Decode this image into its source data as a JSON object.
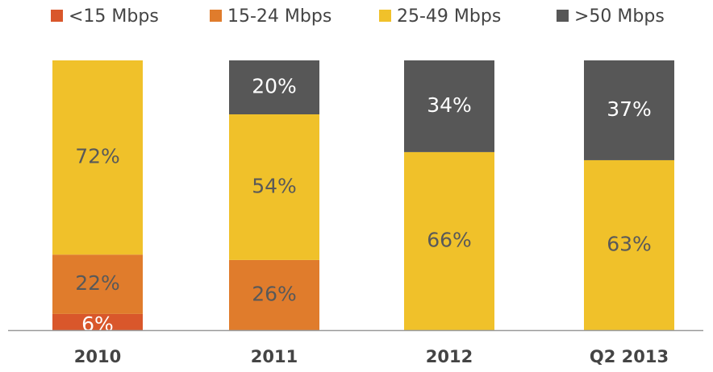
{
  "chart_data": {
    "type": "stacked_bar",
    "categories": [
      "2010",
      "2011",
      "2012",
      "Q2 2013"
    ],
    "ylim": [
      0,
      100
    ],
    "series": [
      {
        "name": "<15 Mbps",
        "color": "#d9572b",
        "label_color": "#ffffff",
        "values": [
          6,
          0,
          0,
          0
        ],
        "value_labels": [
          "6%",
          null,
          null,
          null
        ]
      },
      {
        "name": "15-24 Mbps",
        "color": "#e07c2c",
        "label_color": "#595959",
        "values": [
          22,
          26,
          0,
          0
        ],
        "value_labels": [
          "22%",
          "26%",
          null,
          null
        ]
      },
      {
        "name": "25-49 Mbps",
        "color": "#f0c12a",
        "label_color": "#595959",
        "values": [
          72,
          54,
          66,
          63
        ],
        "value_labels": [
          "72%",
          "54%",
          "66%",
          "63%"
        ]
      },
      {
        "name": ">50 Mbps",
        "color": "#575757",
        "label_color": "#ffffff",
        "values": [
          0,
          20,
          34,
          37
        ],
        "value_labels": [
          null,
          "20%",
          "34%",
          "37%"
        ]
      }
    ]
  }
}
